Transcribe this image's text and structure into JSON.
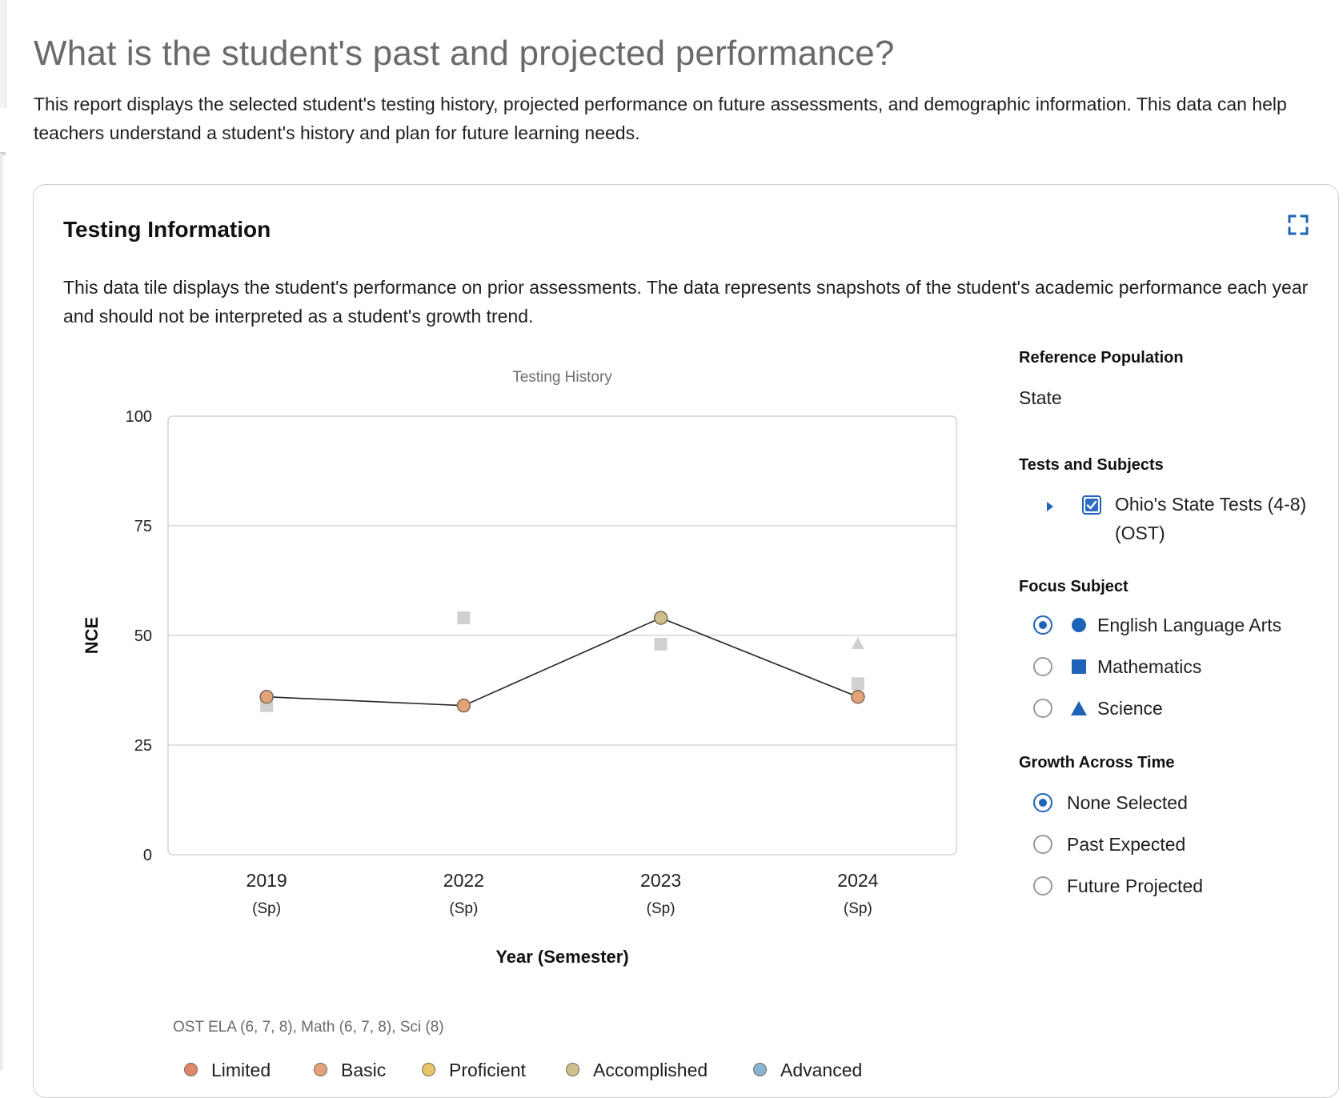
{
  "page": {
    "title": "What is the student's past and projected performance?",
    "description": "This report displays the selected student's testing history, projected performance on future assessments, and demographic information. This data can help teachers understand a student's history and plan for future learning needs."
  },
  "card": {
    "title": "Testing Information",
    "expand_icon": "expand-icon",
    "description": "This data tile displays the student's performance on prior assessments. The data represents snapshots of the student's academic performance each year and should not be interpreted as a student's growth trend."
  },
  "panel": {
    "reference_population": {
      "heading": "Reference Population",
      "value": "State"
    },
    "tests_subjects": {
      "heading": "Tests and Subjects",
      "checkbox_label": "Ohio's State Tests (4-8) (OST)",
      "checked": true
    },
    "focus_subject": {
      "heading": "Focus Subject",
      "options": [
        {
          "label": "English Language Arts",
          "symbol": "circle",
          "checked": true
        },
        {
          "label": "Mathematics",
          "symbol": "square",
          "checked": false
        },
        {
          "label": "Science",
          "symbol": "triangle",
          "checked": false
        }
      ]
    },
    "growth": {
      "heading": "Growth Across Time",
      "options": [
        {
          "label": "None Selected",
          "checked": true
        },
        {
          "label": "Past Expected",
          "checked": false
        },
        {
          "label": "Future Projected",
          "checked": false
        }
      ]
    }
  },
  "legend": {
    "caption": "OST ELA (6, 7, 8), Math (6, 7, 8), Sci (8)",
    "items": [
      {
        "label": "Limited",
        "color": "#e0866a"
      },
      {
        "label": "Basic",
        "color": "#e4a27a"
      },
      {
        "label": "Proficient",
        "color": "#e8c46a"
      },
      {
        "label": "Accomplished",
        "color": "#cfbf8c"
      },
      {
        "label": "Advanced",
        "color": "#8ab4d6"
      }
    ]
  },
  "colors": {
    "accent": "#1f63b8",
    "gridline": "#d5d5d5",
    "secondary_marker": "#d0d0d0"
  },
  "chart_data": {
    "type": "line",
    "title": "Testing History",
    "xlabel": "Year (Semester)",
    "ylabel": "NCE",
    "ylim": [
      0,
      100
    ],
    "yticks": [
      0,
      25,
      50,
      75,
      100
    ],
    "categories": [
      {
        "year": "2019",
        "term": "(Sp)"
      },
      {
        "year": "2022",
        "term": "(Sp)"
      },
      {
        "year": "2023",
        "term": "(Sp)"
      },
      {
        "year": "2024",
        "term": "(Sp)"
      }
    ],
    "focus_series": {
      "subject": "English Language Arts",
      "values": [
        36,
        34,
        54,
        36
      ],
      "levels": [
        "Basic",
        "Basic",
        "Accomplished",
        "Basic"
      ]
    },
    "other_series": [
      {
        "subject": "Mathematics",
        "symbol": "square",
        "values": [
          34,
          54,
          48,
          39
        ]
      },
      {
        "subject": "Science",
        "symbol": "triangle",
        "values": [
          null,
          null,
          null,
          48
        ]
      }
    ],
    "grid": true
  }
}
